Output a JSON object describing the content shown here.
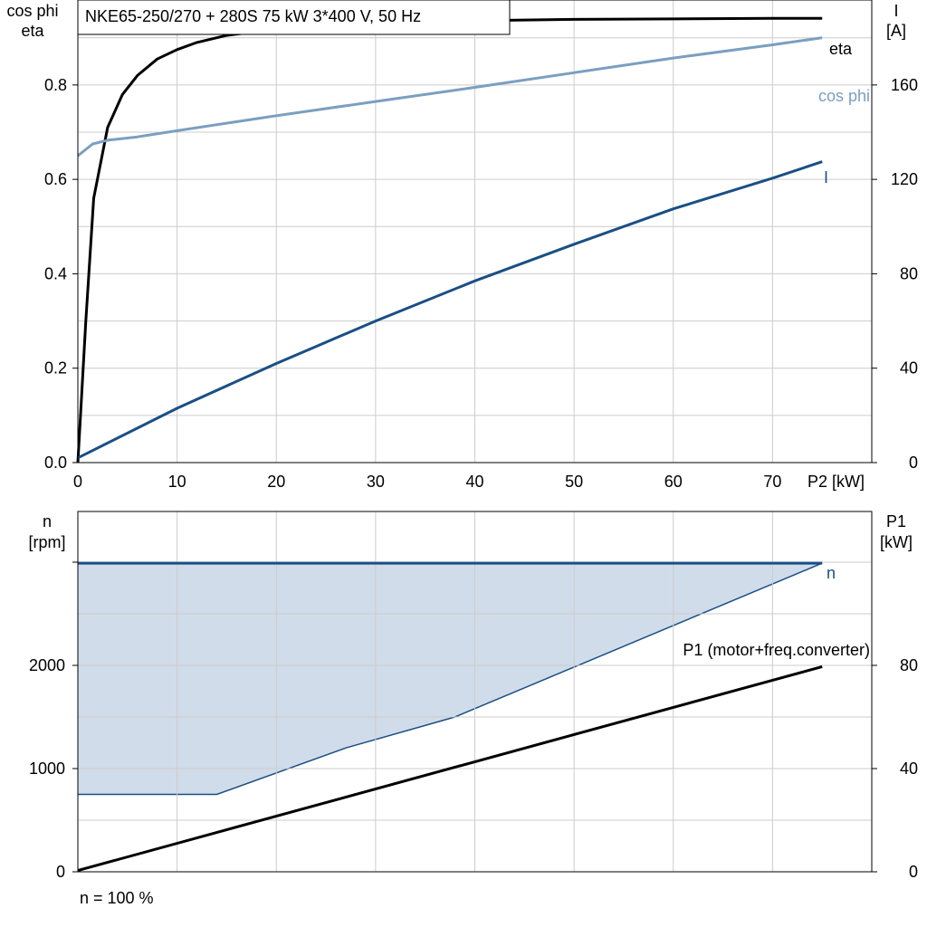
{
  "chart_data": [
    {
      "type": "line",
      "title": "NKE65-250/270 + 280S   75 kW   3*400 V, 50 Hz",
      "xlabel": "P2 [kW]",
      "ylabel_left_line1": "cos phi",
      "ylabel_left_line2": "eta",
      "ylabel_right_line1": "I",
      "ylabel_right_line2": "[A]",
      "xlim": [
        0,
        80
      ],
      "ylim_left": [
        0,
        0.98
      ],
      "ylim_right": [
        0,
        196
      ],
      "xticks": [
        "0",
        "10",
        "20",
        "30",
        "40",
        "50",
        "60",
        "70"
      ],
      "yticks_left": [
        "0.0",
        "0.2",
        "0.4",
        "0.6",
        "0.8"
      ],
      "yticks_right": [
        "0",
        "40",
        "80",
        "120",
        "160"
      ],
      "grid": true,
      "series": [
        {
          "name": "eta",
          "axis": "left",
          "color": "#000000",
          "x": [
            0,
            0.8,
            1.6,
            3,
            4.5,
            6,
            8,
            10,
            12,
            15,
            20,
            30,
            40,
            50,
            60,
            70,
            75
          ],
          "y": [
            0.0,
            0.3,
            0.56,
            0.71,
            0.78,
            0.82,
            0.855,
            0.875,
            0.89,
            0.905,
            0.918,
            0.93,
            0.936,
            0.939,
            0.94,
            0.941,
            0.941
          ]
        },
        {
          "name": "cos phi",
          "axis": "left",
          "color": "#7a9fc0",
          "x": [
            0,
            1.5,
            3,
            6,
            10,
            20,
            30,
            40,
            50,
            60,
            70,
            75
          ],
          "y": [
            0.65,
            0.675,
            0.683,
            0.69,
            0.703,
            0.735,
            0.765,
            0.795,
            0.826,
            0.857,
            0.885,
            0.9
          ]
        },
        {
          "name": "I",
          "axis": "right",
          "color": "#1a4f84",
          "x": [
            0,
            10,
            20,
            30,
            40,
            50,
            60,
            70,
            75
          ],
          "y": [
            2,
            23,
            42,
            60,
            77,
            92.5,
            107.5,
            120.5,
            127.5
          ]
        }
      ]
    },
    {
      "type": "area",
      "xlabel": "",
      "ylabel_left_line1": "n",
      "ylabel_left_line2": "[rpm]",
      "ylabel_right_line1": "P1",
      "ylabel_right_line2": "[kW]",
      "xlim": [
        0,
        80
      ],
      "ylim_left": [
        0,
        3000
      ],
      "ylim_right": [
        0,
        120
      ],
      "yticks_left": [
        "0",
        "1000",
        "2000"
      ],
      "yticks_right": [
        "0",
        "40",
        "80"
      ],
      "grid": true,
      "region": {
        "upper_rpm": 2990,
        "lower_x": [
          0,
          14,
          27,
          38,
          75
        ],
        "lower_y": [
          750,
          750,
          1200,
          1500,
          2990
        ],
        "fill": "#d0dcea",
        "edge": "#1a4f84"
      },
      "series": [
        {
          "name": "n",
          "axis": "left",
          "color": "#1a4f84",
          "x": [
            0,
            75
          ],
          "y": [
            2990,
            2990
          ]
        },
        {
          "name": "P1 (motor+freq.converter)",
          "axis": "right",
          "color": "#000000",
          "x": [
            0,
            75
          ],
          "y": [
            0.5,
            79.5
          ]
        }
      ],
      "footnote": "n = 100 %"
    }
  ]
}
